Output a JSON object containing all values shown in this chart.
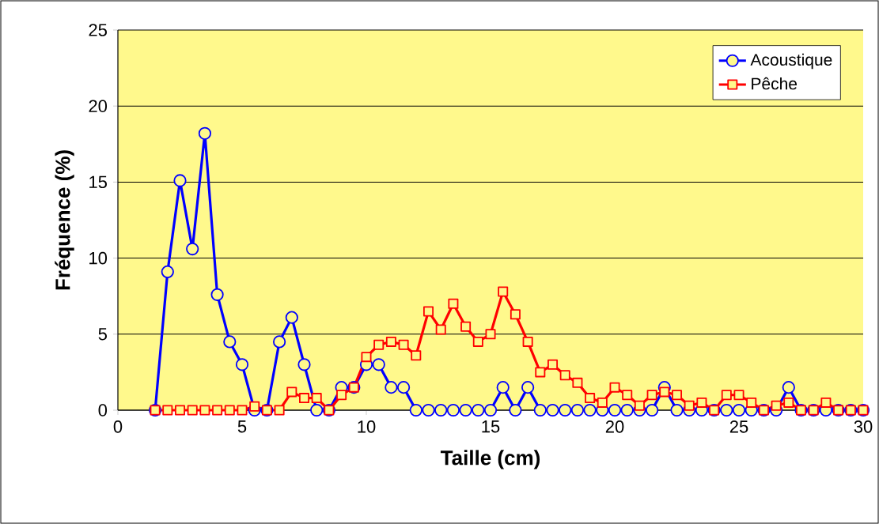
{
  "chart_data": {
    "type": "line",
    "xlabel": "Taille (cm)",
    "ylabel": "Fréquence (%)",
    "x": [
      1.5,
      2,
      2.5,
      3,
      3.5,
      4,
      4.5,
      5,
      5.5,
      6,
      6.5,
      7,
      7.5,
      8,
      8.5,
      9,
      9.5,
      10,
      10.5,
      11,
      11.5,
      12,
      12.5,
      13,
      13.5,
      14,
      14.5,
      15,
      15.5,
      16,
      16.5,
      17,
      17.5,
      18,
      18.5,
      19,
      19.5,
      20,
      20.5,
      21,
      21.5,
      22,
      22.5,
      23,
      23.5,
      24,
      24.5,
      25,
      25.5,
      26,
      26.5,
      27,
      27.5,
      28,
      28.5,
      29,
      29.5,
      30
    ],
    "series": [
      {
        "name": "Acoustique",
        "color": "#0000ff",
        "marker": "circle",
        "values": [
          0,
          9.1,
          15.1,
          10.6,
          18.2,
          7.6,
          4.5,
          3.0,
          0,
          0,
          4.5,
          6.1,
          3.0,
          0,
          0,
          1.5,
          1.5,
          3.0,
          3.0,
          1.5,
          1.5,
          0,
          0,
          0,
          0,
          0,
          0,
          0,
          1.5,
          0,
          1.5,
          0,
          0,
          0,
          0,
          0,
          0,
          0,
          0,
          0,
          0,
          1.5,
          0,
          0,
          0,
          0,
          0,
          0,
          0,
          0,
          0,
          1.5,
          0,
          0,
          0,
          0,
          0,
          0
        ]
      },
      {
        "name": "Pêche",
        "color": "#ff0000",
        "marker": "square",
        "values": [
          0,
          0,
          0,
          0,
          0,
          0,
          0,
          0,
          0.25,
          0,
          0,
          1.2,
          0.8,
          0.8,
          0,
          1.0,
          1.5,
          3.5,
          4.3,
          4.5,
          4.3,
          3.6,
          6.5,
          5.3,
          7.0,
          5.5,
          4.5,
          5.0,
          7.8,
          6.3,
          4.5,
          2.5,
          3.0,
          2.3,
          1.8,
          0.8,
          0.5,
          1.5,
          1.0,
          0.3,
          1.0,
          1.2,
          1.0,
          0.3,
          0.5,
          0,
          1.0,
          1.0,
          0.5,
          0,
          0.3,
          0.5,
          0,
          0,
          0.5,
          0,
          0,
          0
        ]
      }
    ],
    "xlim": [
      0,
      30
    ],
    "xticks": [
      0,
      5,
      10,
      15,
      20,
      25,
      30
    ],
    "ylim": [
      0,
      25
    ],
    "yticks": [
      0,
      5,
      10,
      15,
      20,
      25
    ],
    "grid": "y",
    "legend": "top right",
    "line_style": "solid"
  }
}
